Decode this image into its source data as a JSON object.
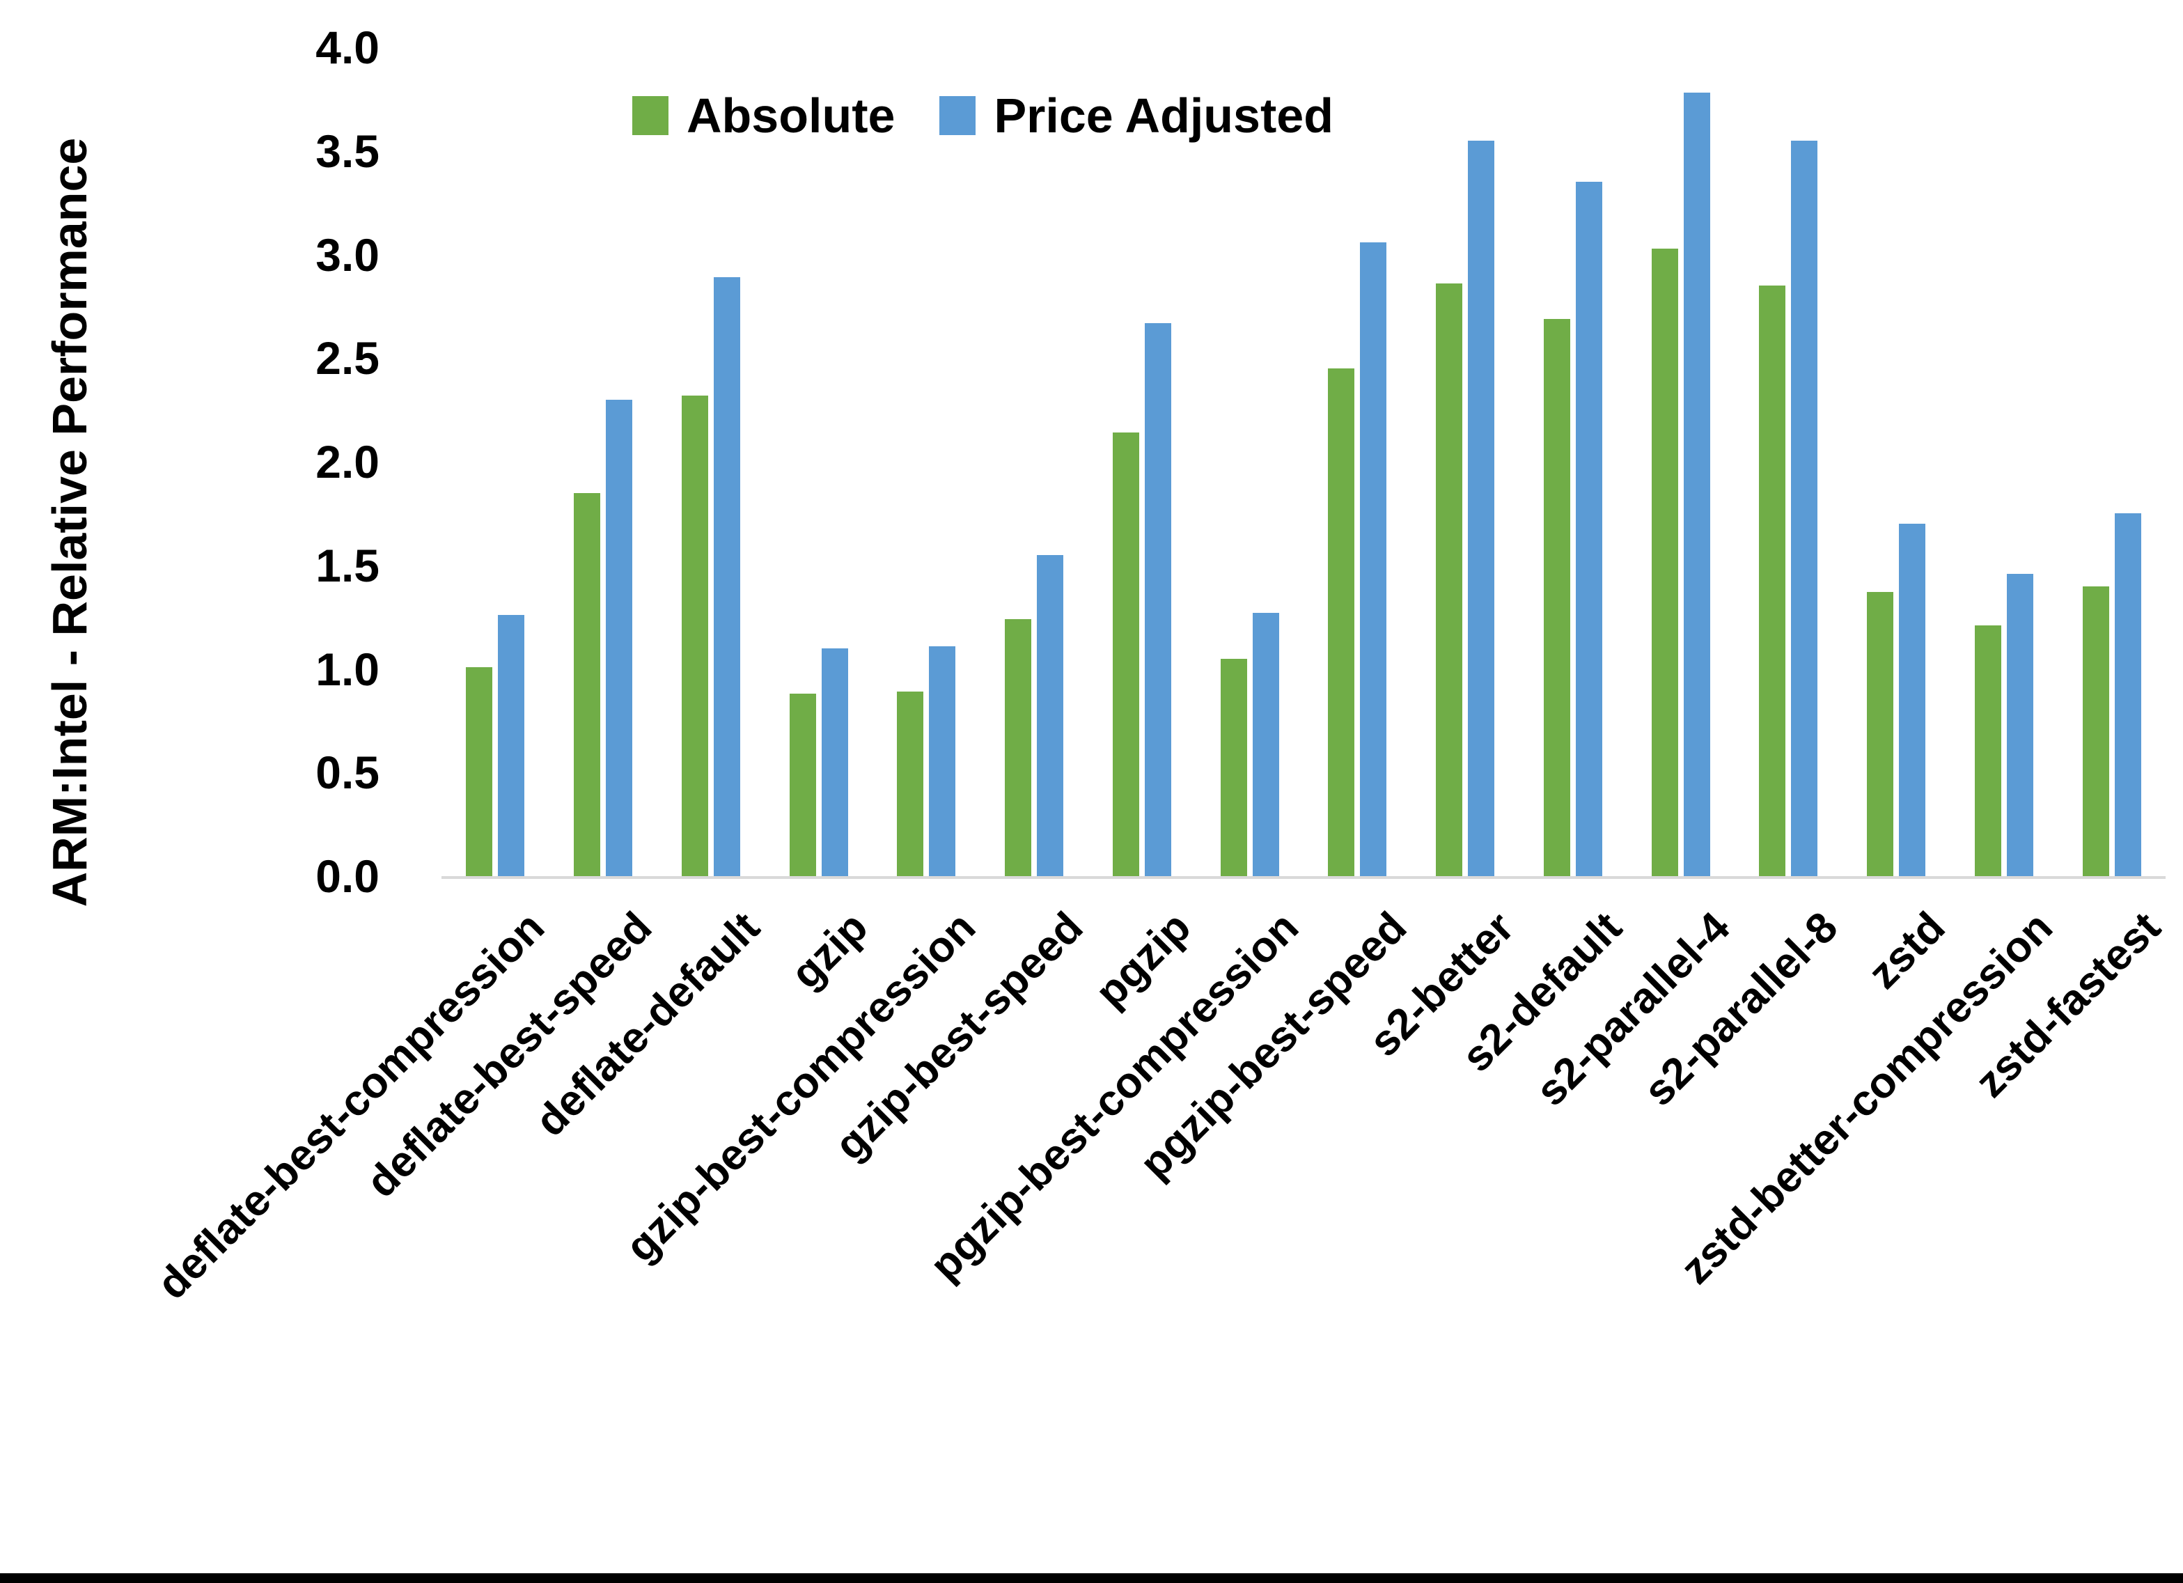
{
  "figure": {
    "y_axis_title": "ARM:Intel - Relative Performance",
    "background_color": "#ffffff",
    "axis_line_color": "#d9d9d9",
    "bottom_border_color": "#000000"
  },
  "legend": {
    "items": [
      {
        "label": "Absolute",
        "color": "#70AD47"
      },
      {
        "label": "Price Adjusted",
        "color": "#5B9BD5"
      }
    ]
  },
  "chart_data": {
    "type": "bar",
    "title": "",
    "xlabel": "",
    "ylabel": "ARM:Intel - Relative Performance",
    "ylim": [
      0,
      4
    ],
    "ytick_labels": [
      "0.0",
      "0.5",
      "1.0",
      "1.5",
      "2.0",
      "2.5",
      "3.0",
      "3.5",
      "4.0"
    ],
    "ytick_values": [
      0,
      0.5,
      1,
      1.5,
      2,
      2.5,
      3,
      3.5,
      4
    ],
    "grid": false,
    "legend_position": "top-center",
    "categories": [
      "deflate-best-compression",
      "deflate-best-speed",
      "deflate-default",
      "gzip",
      "gzip-best-compression",
      "gzip-best-speed",
      "pgzip",
      "pgzip-best-compression",
      "pgzip-best-speed",
      "s2-better",
      "s2-default",
      "s2-parallel-4",
      "s2-parallel-8",
      "zstd",
      "zstd-better-compression",
      "zstd-fastest"
    ],
    "series": [
      {
        "name": "Absolute",
        "color": "#70AD47",
        "values": [
          1.01,
          1.85,
          2.32,
          0.88,
          0.89,
          1.24,
          2.14,
          1.05,
          2.45,
          2.86,
          2.69,
          3.03,
          2.85,
          1.37,
          1.21,
          1.4
        ]
      },
      {
        "name": "Price Adjusted",
        "color": "#5B9BD5",
        "values": [
          1.26,
          2.3,
          2.89,
          1.1,
          1.11,
          1.55,
          2.67,
          1.27,
          3.06,
          3.55,
          3.35,
          3.78,
          3.55,
          1.7,
          1.46,
          1.75
        ]
      }
    ]
  }
}
